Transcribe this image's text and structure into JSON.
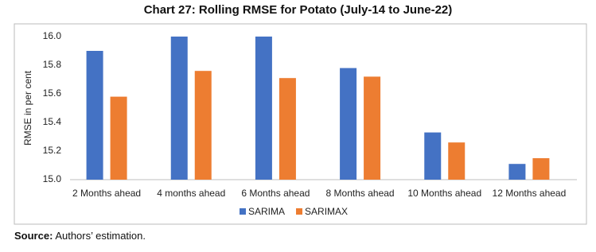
{
  "chart_data": {
    "type": "bar",
    "title": "Chart 27: Rolling RMSE for Potato (July-14 to June-22)",
    "y_label": "RMSE in per cent",
    "categories": [
      "2 Months ahead",
      "4 months ahead",
      "6 Months ahead",
      "8 Months ahead",
      "10 Months ahead",
      "12 Months ahead"
    ],
    "series": [
      {
        "name": "SARIMA",
        "color": "#4472c4",
        "values": [
          15.9,
          16.0,
          16.0,
          15.78,
          15.33,
          15.11
        ]
      },
      {
        "name": "SARIMAX",
        "color": "#ed7d31",
        "values": [
          15.58,
          15.76,
          15.71,
          15.72,
          15.26,
          15.15
        ]
      }
    ],
    "ylim": [
      15.0,
      16.0
    ],
    "yticks": [
      {
        "value": 15.0,
        "label": "15.0"
      },
      15.2,
      15.4,
      15.6,
      15.8,
      {
        "value": 16.0,
        "label": "16.0"
      }
    ],
    "grid": false,
    "legend": "bottom",
    "source_label": "Source:",
    "source_text": "Authors’ estimation."
  }
}
